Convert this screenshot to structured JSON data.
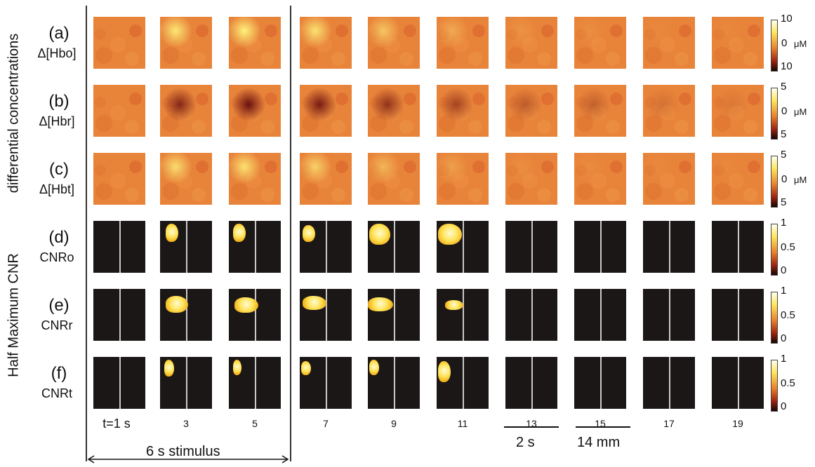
{
  "group_labels": {
    "top": "differential concentrations",
    "bottom": "Half Maximum CNR"
  },
  "rows": [
    {
      "id": "(a)",
      "name": "Δ[Hbo]"
    },
    {
      "id": "(b)",
      "name": "Δ[Hbr]"
    },
    {
      "id": "(c)",
      "name": "Δ[Hbt]"
    },
    {
      "id": "(d)",
      "name": "CNRo"
    },
    {
      "id": "(e)",
      "name": "CNRr"
    },
    {
      "id": "(f)",
      "name": "CNRt"
    }
  ],
  "time_labels": [
    "t=1 s",
    "3",
    "5",
    "7",
    "9",
    "11",
    "13",
    "15",
    "17",
    "19"
  ],
  "colorbars": [
    {
      "top": "10",
      "mid": "0",
      "bottom": "10",
      "unit": "μM"
    },
    {
      "top": "5",
      "mid": "0",
      "bottom": "5",
      "unit": "μM"
    },
    {
      "top": "5",
      "mid": "0",
      "bottom": "5",
      "unit": "μM"
    },
    {
      "top": "1",
      "mid": "0.5",
      "bottom": "0",
      "unit": ""
    },
    {
      "top": "1",
      "mid": "0.5",
      "bottom": "0",
      "unit": ""
    },
    {
      "top": "1",
      "mid": "0.5",
      "bottom": "0",
      "unit": ""
    }
  ],
  "annotations": {
    "stimulus": "6 s stimulus",
    "time_scale": "2 s",
    "space_scale": "14 mm"
  },
  "colors": {
    "map_base": "#e8833a",
    "activation": "#fff27a",
    "deactivation": "#6b0f0f",
    "cnr_background": "#1b1717"
  }
}
